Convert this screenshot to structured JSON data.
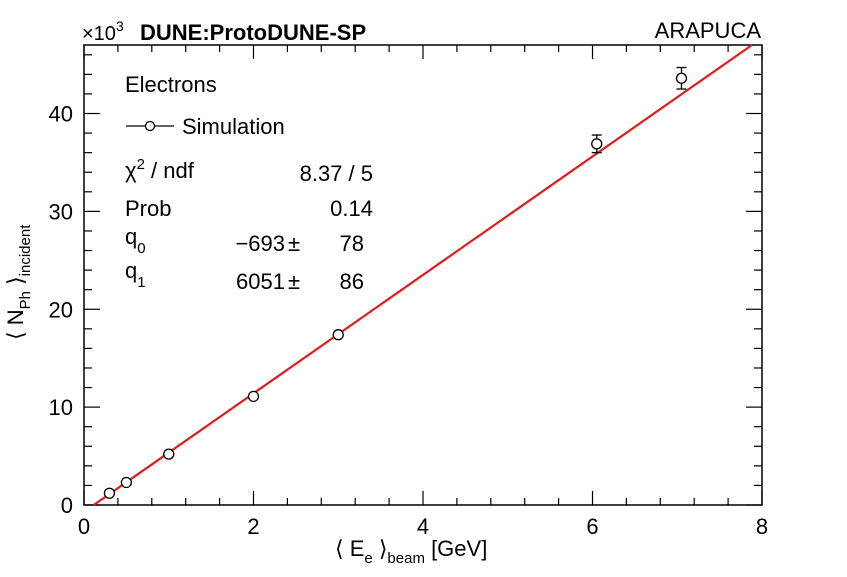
{
  "header": {
    "multiplier": "×10",
    "multiplier_exp": "3",
    "experiment": "DUNE:ProtoDUNE-SP",
    "detector": "ARAPUCA"
  },
  "legend": {
    "title": "Electrons",
    "entry": "Simulation"
  },
  "fit_stats": {
    "chi2_label": "χ",
    "chi2_sup": "2",
    "chi2_rest": " / ndf",
    "chi2_value": "8.37 / 5",
    "prob_label": "Prob",
    "prob_value": "0.14",
    "q0_label": "q",
    "q0_sub": "0",
    "q0_value": "−693",
    "q0_pm": "±",
    "q0_err": "78",
    "q1_label": "q",
    "q1_sub": "1",
    "q1_value": "6051",
    "q1_pm": "±",
    "q1_err": "86"
  },
  "axes": {
    "xlabel_pre": "⟨ E",
    "xlabel_sub": "e",
    "xlabel_mid": " ⟩",
    "xlabel_sub2": "beam",
    "xlabel_post": " [GeV]",
    "ylabel_pre": "⟨ N",
    "ylabel_sub": "Ph",
    "ylabel_mid": " ⟩",
    "ylabel_sub2": "incident"
  },
  "chart_data": {
    "type": "scatter",
    "xlim": [
      0,
      8
    ],
    "ylim": [
      0,
      47
    ],
    "y_multiplier": 1000,
    "x_ticks": [
      0,
      2,
      4,
      6,
      8
    ],
    "y_ticks": [
      0,
      10,
      20,
      30,
      40
    ],
    "series": [
      {
        "name": "Simulation",
        "marker": "open-circle",
        "color": "#000000",
        "points": [
          {
            "x": 0.3,
            "y": 1.2,
            "err": 0
          },
          {
            "x": 0.5,
            "y": 2.3,
            "err": 0
          },
          {
            "x": 1.0,
            "y": 5.2,
            "err": 0
          },
          {
            "x": 2.0,
            "y": 11.1,
            "err": 0
          },
          {
            "x": 3.0,
            "y": 17.4,
            "err": 0
          },
          {
            "x": 6.05,
            "y": 36.9,
            "err": 0.9
          },
          {
            "x": 7.05,
            "y": 43.6,
            "err": 1.1
          }
        ]
      }
    ],
    "fit": {
      "type": "line",
      "color": "#e31a1c",
      "q0": -0.693,
      "q1": 6.051,
      "x_range": [
        0.0,
        8.0
      ]
    }
  }
}
